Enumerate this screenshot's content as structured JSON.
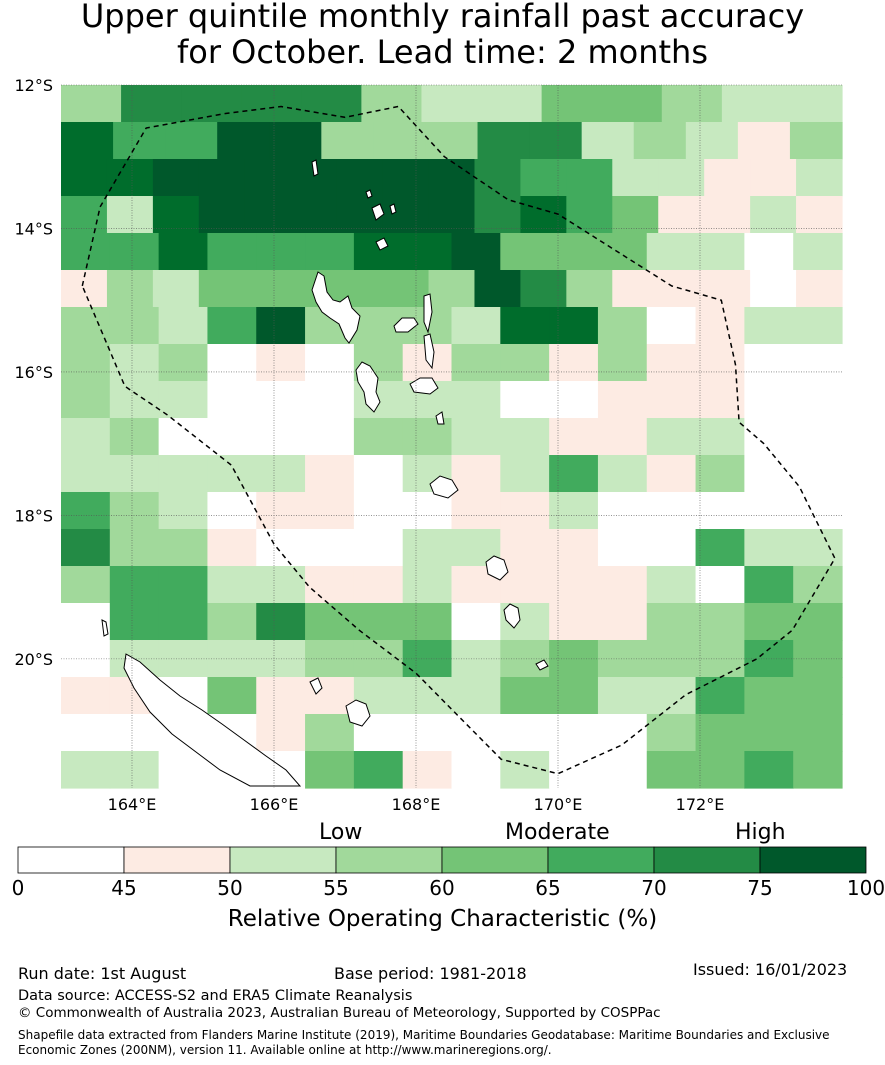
{
  "title_line1": "Upper quintile monthly rainfall past accuracy",
  "title_line2": "for October. Lead time: 2 months",
  "map": {
    "lon_range": [
      163.0,
      174.0
    ],
    "lat_range": [
      -21.8,
      -12.0
    ],
    "y_ticks": [
      "12°S",
      "14°S",
      "16°S",
      "18°S",
      "20°S"
    ],
    "x_ticks": [
      "164°E",
      "166°E",
      "168°E",
      "170°E",
      "172°E"
    ],
    "grid": true,
    "grid_levels": [
      [
        3,
        6,
        6,
        6,
        6,
        3,
        2,
        2,
        4,
        4,
        3,
        2,
        2
      ],
      [
        7,
        5,
        5,
        8,
        8,
        3,
        3,
        3,
        6,
        6,
        2,
        3,
        2,
        1,
        3
      ],
      [
        7,
        7,
        8,
        8,
        8,
        8,
        8,
        8,
        8,
        6,
        5,
        5,
        2,
        2,
        1,
        1,
        2
      ],
      [
        5,
        2,
        7,
        8,
        8,
        8,
        8,
        8,
        8,
        6,
        7,
        5,
        4,
        1,
        1,
        2,
        1
      ],
      [
        5,
        5,
        7,
        5,
        5,
        5,
        7,
        7,
        8,
        4,
        4,
        4,
        2,
        2,
        0,
        2
      ],
      [
        1,
        3,
        2,
        4,
        4,
        4,
        4,
        4,
        3,
        8,
        6,
        3,
        1,
        1,
        1,
        0,
        1
      ],
      [
        3,
        3,
        2,
        5,
        8,
        3,
        3,
        3,
        2,
        7,
        7,
        3,
        0,
        1,
        2,
        2
      ],
      [
        3,
        2,
        3,
        0,
        1,
        0,
        3,
        1,
        3,
        3,
        1,
        3,
        1,
        1,
        0,
        0
      ],
      [
        3,
        2,
        2,
        0,
        0,
        0,
        2,
        2,
        2,
        0,
        0,
        1,
        1,
        1,
        0,
        0
      ],
      [
        2,
        3,
        0,
        0,
        0,
        0,
        3,
        3,
        2,
        2,
        1,
        1,
        2,
        2,
        0,
        0
      ],
      [
        2,
        2,
        2,
        2,
        2,
        1,
        0,
        2,
        1,
        2,
        5,
        2,
        1,
        3,
        0,
        0
      ],
      [
        5,
        3,
        2,
        0,
        1,
        1,
        0,
        0,
        1,
        1,
        2,
        0,
        0,
        0,
        0,
        0
      ],
      [
        6,
        3,
        3,
        1,
        0,
        0,
        0,
        2,
        2,
        1,
        1,
        0,
        0,
        5,
        2,
        2
      ],
      [
        3,
        5,
        5,
        2,
        2,
        1,
        1,
        2,
        1,
        1,
        1,
        1,
        2,
        0,
        5,
        3
      ],
      [
        0,
        5,
        5,
        3,
        6,
        4,
        4,
        4,
        0,
        2,
        1,
        1,
        3,
        3,
        4,
        4
      ],
      [
        0,
        2,
        2,
        2,
        2,
        3,
        3,
        5,
        2,
        3,
        4,
        3,
        3,
        3,
        5,
        4
      ],
      [
        1,
        1,
        0,
        4,
        1,
        1,
        2,
        2,
        2,
        4,
        4,
        2,
        2,
        5,
        4,
        4
      ],
      [
        0,
        0,
        0,
        0,
        1,
        3,
        0,
        0,
        0,
        0,
        0,
        0,
        3,
        4,
        4,
        4
      ],
      [
        2,
        2,
        0,
        0,
        0,
        4,
        5,
        1,
        0,
        2,
        0,
        0,
        4,
        4,
        5,
        4
      ]
    ],
    "eez_outline": [
      [
        163.3,
        -14.8
      ],
      [
        163.55,
        -13.7
      ],
      [
        164.2,
        -12.6
      ],
      [
        165.3,
        -12.4
      ],
      [
        166.1,
        -12.3
      ],
      [
        167.0,
        -12.45
      ],
      [
        167.75,
        -12.3
      ],
      [
        168.4,
        -13.0
      ],
      [
        169.3,
        -13.6
      ],
      [
        170.0,
        -13.8
      ],
      [
        170.8,
        -14.3
      ],
      [
        171.6,
        -14.8
      ],
      [
        172.3,
        -15.0
      ],
      [
        172.5,
        -15.9
      ],
      [
        172.55,
        -16.7
      ],
      [
        172.9,
        -17.0
      ],
      [
        173.4,
        -17.6
      ],
      [
        173.7,
        -18.2
      ],
      [
        173.9,
        -18.6
      ],
      [
        173.6,
        -19.1
      ],
      [
        173.3,
        -19.6
      ],
      [
        172.8,
        -20.0
      ],
      [
        171.8,
        -20.5
      ],
      [
        170.9,
        -21.2
      ],
      [
        170.0,
        -21.6
      ],
      [
        169.2,
        -21.4
      ],
      [
        168.6,
        -20.8
      ],
      [
        168.0,
        -20.2
      ],
      [
        167.2,
        -19.6
      ],
      [
        166.5,
        -19.0
      ],
      [
        166.0,
        -18.4
      ],
      [
        165.4,
        -17.3
      ],
      [
        164.5,
        -16.6
      ],
      [
        163.9,
        -16.2
      ],
      [
        163.3,
        -14.8
      ]
    ]
  },
  "colorbar": {
    "category_labels": [
      "Low",
      "Moderate",
      "High"
    ],
    "ticks": [
      "0",
      "45",
      "50",
      "55",
      "60",
      "65",
      "70",
      "75",
      "100"
    ],
    "colors": [
      "#ffffff",
      "#fdebe3",
      "#c7e9c0",
      "#a1d99b",
      "#74c476",
      "#41ab5d",
      "#238b45",
      "#006d2c",
      "#00582b"
    ],
    "title": "Relative Operating Characteristic (%)"
  },
  "footer": {
    "run_date": "Run date: 1st August",
    "base_period": "Base period: 1981-2018",
    "issued": "Issued: 16/01/2023",
    "data_source": "Data source: ACCESS-S2 and ERA5 Climate Reanalysis",
    "copyright": "© Commonwealth of Australia 2023, Australian Bureau of Meteorology, Supported by COSPPac",
    "shapefile": "Shapefile data extracted from Flanders Marine Institute (2019), Maritime Boundaries Geodatabase: Maritime Boundaries and Exclusive Economic Zones (200NM), version 11. Available online at http://www.marineregions.org/."
  }
}
